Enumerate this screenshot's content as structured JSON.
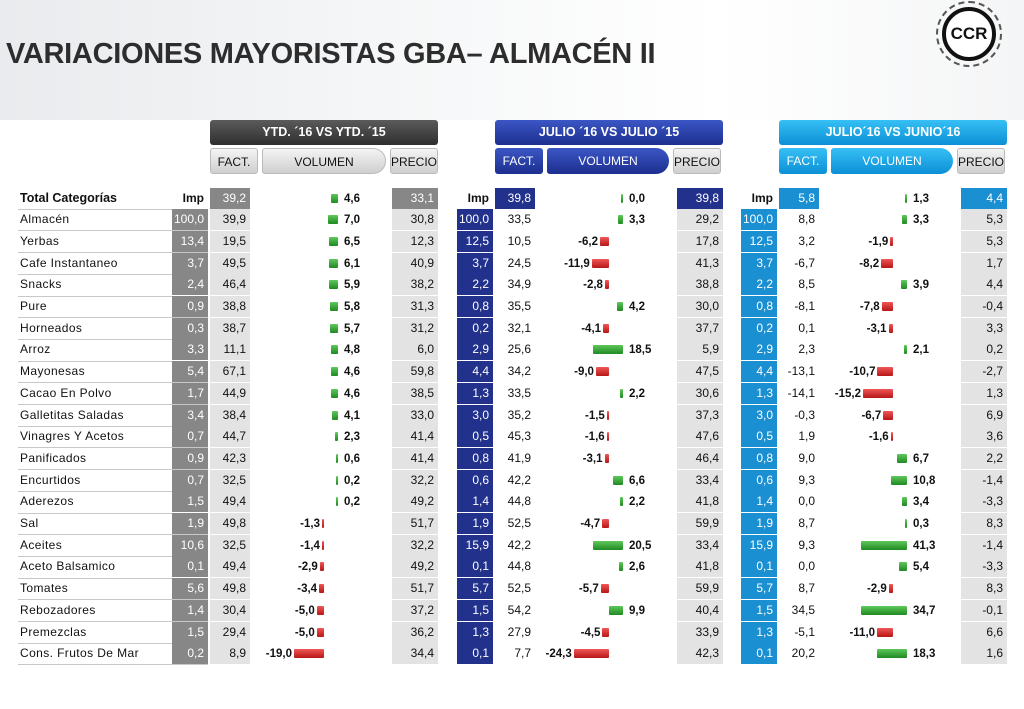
{
  "page": {
    "title": "VARIACIONES MAYORISTAS GBA– ALMACÉN II",
    "logo_text": "CCR"
  },
  "groups": [
    {
      "label": "YTD. ´16 VS YTD. ´15",
      "sub": [
        "FACT.",
        "VOLUMEN",
        "PRECIO"
      ]
    },
    {
      "label": "JULIO ´16 VS  JULIO ´15",
      "sub": [
        "FACT.",
        "VOLUMEN",
        "PRECIO"
      ]
    },
    {
      "label": "JULIO´16 VS JUNIO´16",
      "sub": [
        "FACT.",
        "VOLUMEN",
        "PRECIO"
      ]
    }
  ],
  "header_row": {
    "label": "Total  Categorías",
    "imp_label": "Imp"
  },
  "colors": {
    "positive": "#2e9b2e",
    "negative": "#d42020"
  },
  "rows": [
    {
      "label": "Total  Categorías",
      "g1": [
        "39,2",
        "4,6",
        "33,1"
      ],
      "g2": [
        "39,8",
        "0,0",
        "39,8"
      ],
      "g3": [
        "5,8",
        "1,3",
        "4,4"
      ]
    },
    {
      "label": "Almacén",
      "g1": [
        "100,0",
        "39,9",
        "7,0",
        "30,8"
      ],
      "g2": [
        "100,0",
        "33,5",
        "3,3",
        "29,2"
      ],
      "g3": [
        "100,0",
        "8,8",
        "3,3",
        "5,3"
      ]
    },
    {
      "label": "Yerbas",
      "g1": [
        "13,4",
        "19,5",
        "6,5",
        "12,3"
      ],
      "g2": [
        "12,5",
        "10,5",
        "-6,2",
        "17,8"
      ],
      "g3": [
        "12,5",
        "3,2",
        "-1,9",
        "5,3"
      ]
    },
    {
      "label": "Cafe Instantaneo",
      "g1": [
        "3,7",
        "49,5",
        "6,1",
        "40,9"
      ],
      "g2": [
        "3,7",
        "24,5",
        "-11,9",
        "41,3"
      ],
      "g3": [
        "3,7",
        "-6,7",
        "-8,2",
        "1,7"
      ]
    },
    {
      "label": "Snacks",
      "g1": [
        "2,4",
        "46,4",
        "5,9",
        "38,2"
      ],
      "g2": [
        "2,2",
        "34,9",
        "-2,8",
        "38,8"
      ],
      "g3": [
        "2,2",
        "8,5",
        "3,9",
        "4,4"
      ]
    },
    {
      "label": "Pure",
      "g1": [
        "0,9",
        "38,8",
        "5,8",
        "31,3"
      ],
      "g2": [
        "0,8",
        "35,5",
        "4,2",
        "30,0"
      ],
      "g3": [
        "0,8",
        "-8,1",
        "-7,8",
        "-0,4"
      ]
    },
    {
      "label": "Horneados",
      "g1": [
        "0,3",
        "38,7",
        "5,7",
        "31,2"
      ],
      "g2": [
        "0,2",
        "32,1",
        "-4,1",
        "37,7"
      ],
      "g3": [
        "0,2",
        "0,1",
        "-3,1",
        "3,3"
      ]
    },
    {
      "label": "Arroz",
      "g1": [
        "3,3",
        "11,1",
        "4,8",
        "6,0"
      ],
      "g2": [
        "2,9",
        "25,6",
        "18,5",
        "5,9"
      ],
      "g3": [
        "2,9",
        "2,3",
        "2,1",
        "0,2"
      ]
    },
    {
      "label": "Mayonesas",
      "g1": [
        "5,4",
        "67,1",
        "4,6",
        "59,8"
      ],
      "g2": [
        "4,4",
        "34,2",
        "-9,0",
        "47,5"
      ],
      "g3": [
        "4,4",
        "-13,1",
        "-10,7",
        "-2,7"
      ]
    },
    {
      "label": "Cacao En Polvo",
      "g1": [
        "1,7",
        "44,9",
        "4,6",
        "38,5"
      ],
      "g2": [
        "1,3",
        "33,5",
        "2,2",
        "30,6"
      ],
      "g3": [
        "1,3",
        "-14,1",
        "-15,2",
        "1,3"
      ]
    },
    {
      "label": "Galletitas Saladas",
      "g1": [
        "3,4",
        "38,4",
        "4,1",
        "33,0"
      ],
      "g2": [
        "3,0",
        "35,2",
        "-1,5",
        "37,3"
      ],
      "g3": [
        "3,0",
        "-0,3",
        "-6,7",
        "6,9"
      ]
    },
    {
      "label": "Vinagres Y Acetos",
      "g1": [
        "0,7",
        "44,7",
        "2,3",
        "41,4"
      ],
      "g2": [
        "0,5",
        "45,3",
        "-1,6",
        "47,6"
      ],
      "g3": [
        "0,5",
        "1,9",
        "-1,6",
        "3,6"
      ]
    },
    {
      "label": "Panificados",
      "g1": [
        "0,9",
        "42,3",
        "0,6",
        "41,4"
      ],
      "g2": [
        "0,8",
        "41,9",
        "-3,1",
        "46,4"
      ],
      "g3": [
        "0,8",
        "9,0",
        "6,7",
        "2,2"
      ]
    },
    {
      "label": "Encurtidos",
      "g1": [
        "0,7",
        "32,5",
        "0,2",
        "32,2"
      ],
      "g2": [
        "0,6",
        "42,2",
        "6,6",
        "33,4"
      ],
      "g3": [
        "0,6",
        "9,3",
        "10,8",
        "-1,4"
      ]
    },
    {
      "label": "Aderezos",
      "g1": [
        "1,5",
        "49,4",
        "0,2",
        "49,2"
      ],
      "g2": [
        "1,4",
        "44,8",
        "2,2",
        "41,8"
      ],
      "g3": [
        "1,4",
        "0,0",
        "3,4",
        "-3,3"
      ]
    },
    {
      "label": "Sal",
      "g1": [
        "1,9",
        "49,8",
        "-1,3",
        "51,7"
      ],
      "g2": [
        "1,9",
        "52,5",
        "-4,7",
        "59,9"
      ],
      "g3": [
        "1,9",
        "8,7",
        "0,3",
        "8,3"
      ]
    },
    {
      "label": "Aceites",
      "g1": [
        "10,6",
        "32,5",
        "-1,4",
        "32,2"
      ],
      "g2": [
        "15,9",
        "42,2",
        "20,5",
        "33,4"
      ],
      "g3": [
        "15,9",
        "9,3",
        "41,3",
        "-1,4"
      ]
    },
    {
      "label": "Aceto Balsamico",
      "g1": [
        "0,1",
        "49,4",
        "-2,9",
        "49,2"
      ],
      "g2": [
        "0,1",
        "44,8",
        "2,6",
        "41,8"
      ],
      "g3": [
        "0,1",
        "0,0",
        "5,4",
        "-3,3"
      ]
    },
    {
      "label": "Tomates",
      "g1": [
        "5,6",
        "49,8",
        "-3,4",
        "51,7"
      ],
      "g2": [
        "5,7",
        "52,5",
        "-5,7",
        "59,9"
      ],
      "g3": [
        "5,7",
        "8,7",
        "-2,9",
        "8,3"
      ]
    },
    {
      "label": "Rebozadores",
      "g1": [
        "1,4",
        "30,4",
        "-5,0",
        "37,2"
      ],
      "g2": [
        "1,5",
        "54,2",
        "9,9",
        "40,4"
      ],
      "g3": [
        "1,5",
        "34,5",
        "34,7",
        "-0,1"
      ]
    },
    {
      "label": "Premezclas",
      "g1": [
        "1,5",
        "29,4",
        "-5,0",
        "36,2"
      ],
      "g2": [
        "1,3",
        "27,9",
        "-4,5",
        "33,9"
      ],
      "g3": [
        "1,3",
        "-5,1",
        "-11,0",
        "6,6"
      ]
    },
    {
      "label": "Cons. Frutos De Mar",
      "g1": [
        "0,2",
        "8,9",
        "-19,0",
        "34,4"
      ],
      "g2": [
        "0,1",
        "7,7",
        "-24,3",
        "42,3"
      ],
      "g3": [
        "0,1",
        "20,2",
        "18,3",
        "1,6"
      ]
    }
  ]
}
